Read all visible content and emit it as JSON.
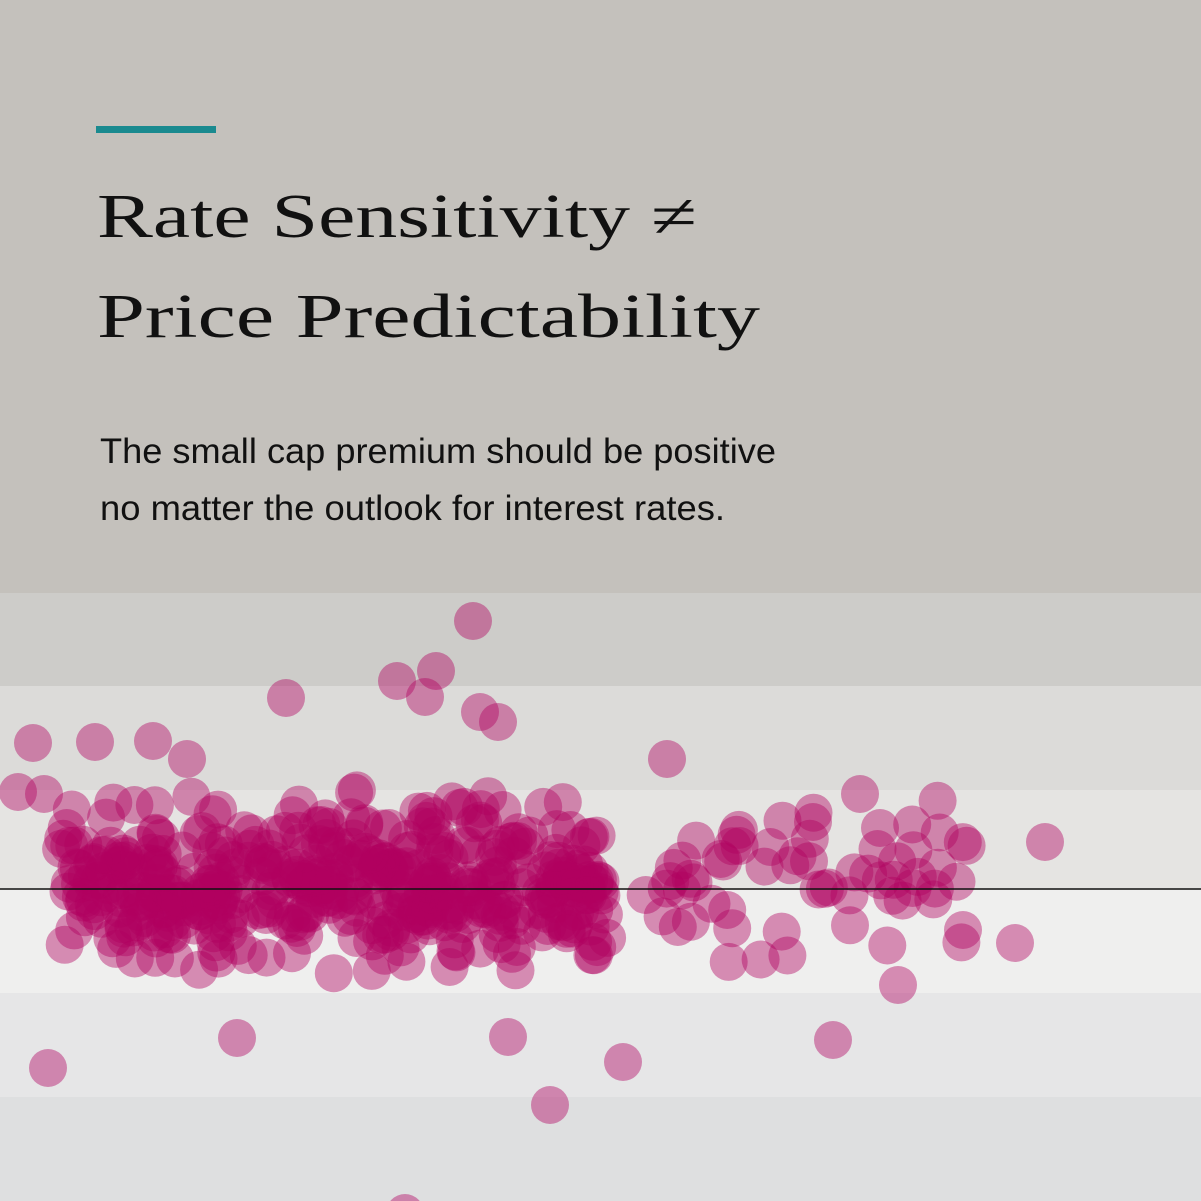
{
  "header": {
    "title_lines": [
      "Rate Sensitivity ≠",
      "Price Predictability"
    ],
    "subtitle_lines": [
      "The small cap premium should be positive",
      "no matter the outlook for interest rates."
    ]
  }
}
